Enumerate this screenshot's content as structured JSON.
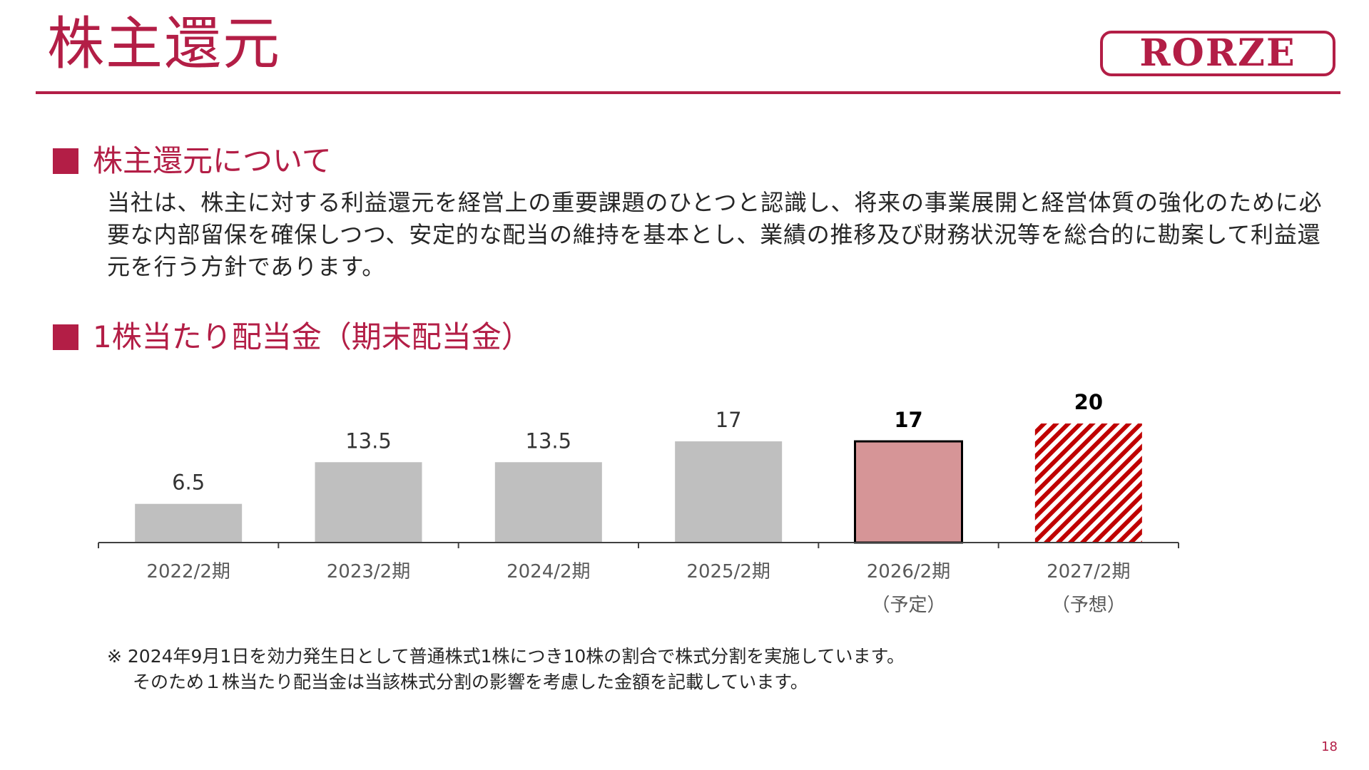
{
  "header": {
    "title": "株主還元",
    "logo_text": "RORZE",
    "brand_color": "#b31e46"
  },
  "section1": {
    "heading": "株主還元について",
    "body": "当社は、株主に対する利益還元を経営上の重要課題のひとつと認識し、将来の事業展開と経営体質の強化のために必要な内部留保を確保しつつ、安定的な配当の維持を基本とし、業績の推移及び財務状況等を総合的に勘案して利益還元を行う方針であります。"
  },
  "section2": {
    "heading": "1株当たり配当金（期末配当金）"
  },
  "chart_data": {
    "type": "bar",
    "categories": [
      "2022/2期",
      "2023/2期",
      "2024/2期",
      "2025/2期",
      "2026/2期",
      "2027/2期"
    ],
    "category_notes": [
      "",
      "",
      "",
      "",
      "（予定）",
      "（予想）"
    ],
    "values": [
      6.5,
      13.5,
      13.5,
      17,
      17,
      20
    ],
    "value_labels": [
      "6.5",
      "13.5",
      "13.5",
      "17",
      "17",
      "20"
    ],
    "bar_styles": [
      "actual",
      "actual",
      "actual",
      "actual",
      "planned",
      "forecast"
    ],
    "colors": {
      "actual": "#bfbfbf",
      "planned_fill": "#d69597",
      "planned_border": "#000000",
      "forecast_stripe": "#c00000",
      "axis": "#404040"
    },
    "ylim": [
      0,
      22
    ],
    "grid": false,
    "legend": "none"
  },
  "footnote": {
    "line1": "※ 2024年9月1日を効力発生日として普通株式1株につき10株の割合で株式分割を実施しています。",
    "line2": "そのため１株当たり配当金は当該株式分割の影響を考慮した金額を記載しています。"
  },
  "page_number": "18"
}
